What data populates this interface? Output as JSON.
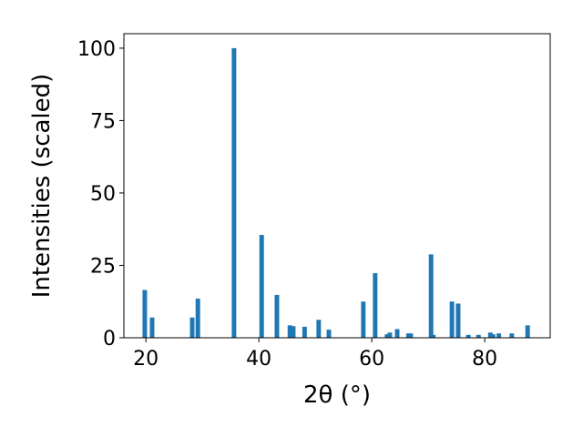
{
  "chart_data": {
    "type": "bar",
    "xlabel": "2θ (°)",
    "ylabel": "Intensities (scaled)",
    "x": [
      19.8,
      21.1,
      28.2,
      29.2,
      35.6,
      40.5,
      43.2,
      45.5,
      46.1,
      48.1,
      50.6,
      52.4,
      58.5,
      60.6,
      62.7,
      63.2,
      64.5,
      66.5,
      66.9,
      70.5,
      70.9,
      74.2,
      75.3,
      77.1,
      78.9,
      81.0,
      81.5,
      82.5,
      84.8,
      87.6
    ],
    "values": [
      16.5,
      7,
      7,
      13.5,
      100,
      35.5,
      14.8,
      4.3,
      4,
      3.8,
      6.2,
      2.8,
      12.5,
      22.3,
      1.2,
      1.8,
      3,
      1.5,
      1.5,
      28.8,
      1,
      12.5,
      11.8,
      1,
      1,
      1.8,
      1.2,
      1.5,
      1.5,
      4.3
    ],
    "color": "#1f77b4",
    "xlim": [
      16.1,
      91.6
    ],
    "ylim": [
      0,
      105
    ],
    "xticks": [
      20,
      40,
      60,
      80
    ],
    "yticks": [
      0,
      25,
      50,
      75,
      100
    ]
  }
}
